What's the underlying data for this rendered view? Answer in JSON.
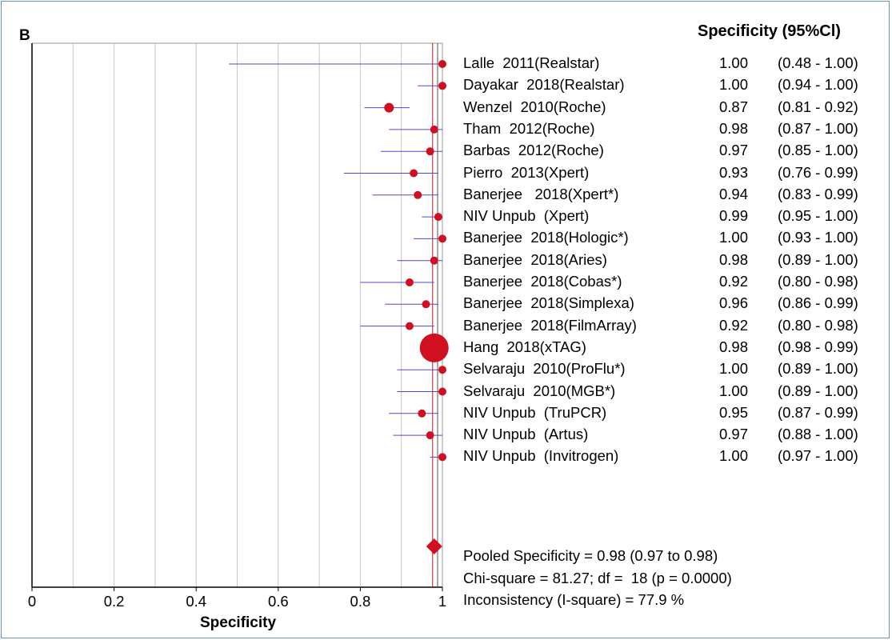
{
  "figure": {
    "panel_letter": "B",
    "column_header": "Specificity (95%Cl)"
  },
  "chart_data": {
    "type": "forest",
    "xlabel": "Specificity",
    "xlim": [
      0,
      1
    ],
    "xticks": [
      "0",
      "0.2",
      "0.4",
      "0.6",
      "0.8",
      "1"
    ],
    "pooled": {
      "estimate": 0.98,
      "lower": 0.97,
      "upper": 0.98
    },
    "studies": [
      {
        "label": "Lalle  2011(Realstar)",
        "estimate": "1.00",
        "ci": "(0.48 - 1.00)",
        "value": 1.0,
        "lower": 0.48,
        "upper": 1.0
      },
      {
        "label": "Dayakar  2018(Realstar)",
        "estimate": "1.00",
        "ci": "(0.94 - 1.00)",
        "value": 1.0,
        "lower": 0.94,
        "upper": 1.0
      },
      {
        "label": "Wenzel  2010(Roche)",
        "estimate": "0.87",
        "ci": "(0.81 - 0.92)",
        "value": 0.87,
        "lower": 0.81,
        "upper": 0.92
      },
      {
        "label": "Tham  2012(Roche)",
        "estimate": "0.98",
        "ci": "(0.87 - 1.00)",
        "value": 0.98,
        "lower": 0.87,
        "upper": 1.0
      },
      {
        "label": "Barbas  2012(Roche)",
        "estimate": "0.97",
        "ci": "(0.85 - 1.00)",
        "value": 0.97,
        "lower": 0.85,
        "upper": 1.0
      },
      {
        "label": "Pierro  2013(Xpert)",
        "estimate": "0.93",
        "ci": "(0.76 - 0.99)",
        "value": 0.93,
        "lower": 0.76,
        "upper": 0.99
      },
      {
        "label": "Banerjee   2018(Xpert*)",
        "estimate": "0.94",
        "ci": "(0.83 - 0.99)",
        "value": 0.94,
        "lower": 0.83,
        "upper": 0.99
      },
      {
        "label": "NIV Unpub  (Xpert)",
        "estimate": "0.99",
        "ci": "(0.95 - 1.00)",
        "value": 0.99,
        "lower": 0.95,
        "upper": 1.0
      },
      {
        "label": "Banerjee  2018(Hologic*)",
        "estimate": "1.00",
        "ci": "(0.93 - 1.00)",
        "value": 1.0,
        "lower": 0.93,
        "upper": 1.0
      },
      {
        "label": "Banerjee  2018(Aries)",
        "estimate": "0.98",
        "ci": "(0.89 - 1.00)",
        "value": 0.98,
        "lower": 0.89,
        "upper": 1.0
      },
      {
        "label": "Banerjee  2018(Cobas*)",
        "estimate": "0.92",
        "ci": "(0.80 - 0.98)",
        "value": 0.92,
        "lower": 0.8,
        "upper": 0.98
      },
      {
        "label": "Banerjee  2018(Simplexa)",
        "estimate": "0.96",
        "ci": "(0.86 - 0.99)",
        "value": 0.96,
        "lower": 0.86,
        "upper": 0.99
      },
      {
        "label": "Banerjee  2018(FilmArray)",
        "estimate": "0.92",
        "ci": "(0.80 - 0.98)",
        "value": 0.92,
        "lower": 0.8,
        "upper": 0.98
      },
      {
        "label": "Hang  2018(xTAG)",
        "estimate": "0.98",
        "ci": "(0.98 - 0.99)",
        "value": 0.98,
        "lower": 0.98,
        "upper": 0.99,
        "large_weight": true
      },
      {
        "label": "Selvaraju  2010(ProFlu*)",
        "estimate": "1.00",
        "ci": "(0.89 - 1.00)",
        "value": 1.0,
        "lower": 0.89,
        "upper": 1.0
      },
      {
        "label": "Selvaraju  2010(MGB*)",
        "estimate": "1.00",
        "ci": "(0.89 - 1.00)",
        "value": 1.0,
        "lower": 0.89,
        "upper": 1.0
      },
      {
        "label": "NIV Unpub  (TruPCR)",
        "estimate": "0.95",
        "ci": "(0.87 - 0.99)",
        "value": 0.95,
        "lower": 0.87,
        "upper": 0.99
      },
      {
        "label": "NIV Unpub  (Artus)",
        "estimate": "0.97",
        "ci": "(0.88 - 1.00)",
        "value": 0.97,
        "lower": 0.88,
        "upper": 1.0
      },
      {
        "label": "NIV Unpub  (Invitrogen)",
        "estimate": "1.00",
        "ci": "(0.97 - 1.00)",
        "value": 1.0,
        "lower": 0.97,
        "upper": 1.0
      }
    ],
    "summary_lines": {
      "pooled": "Pooled Specificity = 0.98 (0.97 to 0.98)",
      "chi": "Chi-square = 81.27; df =  18 (p = 0.0000)",
      "inconsistency": "Inconsistency (I-square) = 77.9 %"
    },
    "colors": {
      "marker": "#d01020",
      "ci_line": "#4a4ad0",
      "grid": "#c8c8c8",
      "ref_line": "#d01020",
      "axis": "#000000"
    }
  }
}
